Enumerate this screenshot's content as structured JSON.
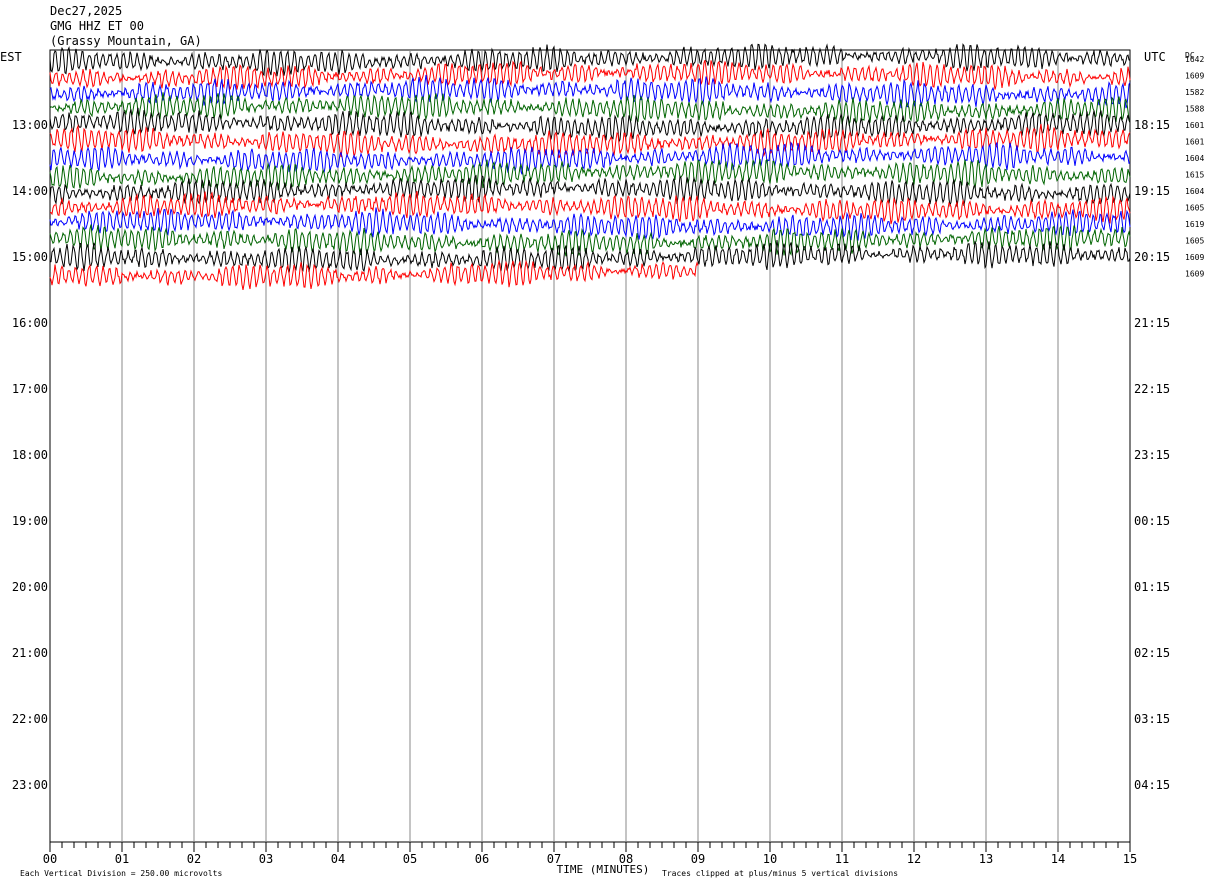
{
  "header": {
    "date": "Dec27,2025",
    "station": "GMG HHZ ET 00",
    "location": "(Grassy Mountain, GA)"
  },
  "chart_data": {
    "type": "line",
    "title": "GMG HHZ ET 00",
    "left_axis_label": "EST",
    "right_axis_label": "UTC",
    "dc_label": "DC",
    "xlabel": "TIME (MINUTES)",
    "x_ticks": [
      "00",
      "01",
      "02",
      "03",
      "04",
      "05",
      "06",
      "07",
      "08",
      "09",
      "10",
      "11",
      "12",
      "13",
      "14",
      "15"
    ],
    "xlim": [
      0,
      15
    ],
    "est_hours": [
      "13:00",
      "14:00",
      "15:00",
      "16:00",
      "17:00",
      "18:00",
      "19:00",
      "20:00",
      "21:00",
      "22:00",
      "23:00"
    ],
    "utc_hours": [
      "18:15",
      "19:15",
      "20:15",
      "21:15",
      "22:15",
      "23:15",
      "00:15",
      "01:15",
      "02:15",
      "03:15",
      "04:15"
    ],
    "trace_colors": [
      "#000000",
      "#ff0000",
      "#0000ff",
      "#006400"
    ],
    "dc_offsets": [
      "1642",
      "1609",
      "1582",
      "1588",
      "1601",
      "1601",
      "1604",
      "1615",
      "1604",
      "1605",
      "1619",
      "1605",
      "1609",
      "1609"
    ],
    "traces_minutes": [
      15,
      15,
      15,
      15,
      15,
      15,
      15,
      15,
      15,
      15,
      15,
      15,
      15,
      9
    ],
    "footer_left": "Each Vertical Division =  250.00 microvolts",
    "footer_right": "Traces clipped at plus/minus 5 vertical divisions"
  }
}
